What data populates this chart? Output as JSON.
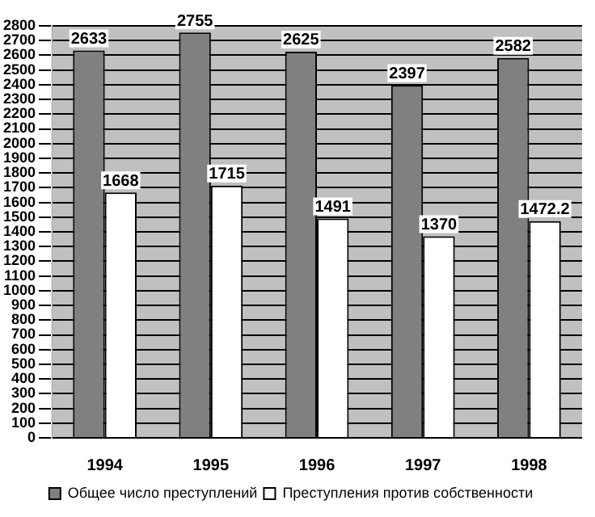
{
  "chart_data": {
    "type": "bar",
    "categories": [
      "1994",
      "1995",
      "1996",
      "1997",
      "1998"
    ],
    "series": [
      {
        "name": "Общее число преступлений",
        "color": "#808080",
        "values": [
          2633,
          2755,
          2625,
          2397,
          2582
        ]
      },
      {
        "name": "Преступления против собственности",
        "color": "#ffffff",
        "values": [
          1668,
          1715,
          1491,
          1370,
          1472.2
        ]
      }
    ],
    "ylim": [
      0,
      2800
    ],
    "yticks": [
      0,
      100,
      200,
      300,
      400,
      500,
      600,
      700,
      800,
      900,
      1000,
      1100,
      1200,
      1300,
      1400,
      1500,
      1600,
      1700,
      1800,
      1900,
      2000,
      2100,
      2200,
      2300,
      2400,
      2500,
      2600,
      2700,
      2800
    ],
    "grid": "y",
    "legend": "bottom",
    "data_labels": true
  }
}
